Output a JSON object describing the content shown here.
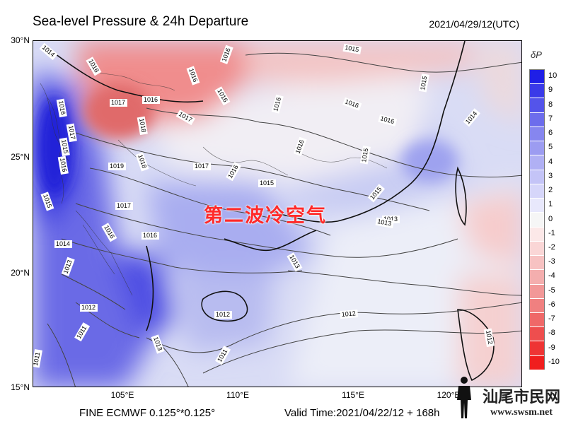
{
  "title": "Sea-level Pressure & 24h Departure",
  "date": "2021/04/29/12(UTC)",
  "y_labels": [
    "30°N",
    "25°N",
    "20°N",
    "15°N"
  ],
  "x_labels": [
    "105°E",
    "110°E",
    "115°E",
    "120°E"
  ],
  "footer_left": "FINE ECMWF 0.125°*0.125°",
  "footer_right": "Valid Time:2021/04/22/12 + 168h",
  "overlay_text": "第二波冷空气",
  "colorbar_title": "δP",
  "colorbar_ticks": [
    "10",
    "9",
    "8",
    "7",
    "6",
    "5",
    "4",
    "3",
    "2",
    "1",
    "0",
    "-1",
    "-2",
    "-3",
    "-4",
    "-5",
    "-6",
    "-7",
    "-8",
    "-9",
    "-10"
  ],
  "colorbar_colors": [
    "#1f1fe6",
    "#3a3ae8",
    "#5454ea",
    "#6d6dec",
    "#8686ef",
    "#9c9cf1",
    "#b0b0f4",
    "#c4c4f7",
    "#d6d6fa",
    "#e8e8fc",
    "#f6f6f6",
    "#fce8e8",
    "#fad6d6",
    "#f7c2c2",
    "#f4aeae",
    "#f29898",
    "#f08080",
    "#ef6868",
    "#ee4e4e",
    "#ee3434",
    "#f01e1e"
  ],
  "contour_labels": [
    {
      "id": "c1",
      "text": "1015"
    },
    {
      "id": "c2",
      "text": "1016"
    },
    {
      "id": "c3",
      "text": "1016"
    },
    {
      "id": "c4",
      "text": "1016"
    },
    {
      "id": "c5",
      "text": "1017"
    },
    {
      "id": "c6",
      "text": "1016"
    },
    {
      "id": "c7",
      "text": "1017"
    },
    {
      "id": "c8",
      "text": "1018"
    },
    {
      "id": "c9",
      "text": "1016"
    },
    {
      "id": "c10",
      "text": "1016"
    },
    {
      "id": "c11",
      "text": "1015"
    },
    {
      "id": "c12",
      "text": "1014"
    },
    {
      "id": "c13",
      "text": "1017"
    },
    {
      "id": "c14",
      "text": "1019"
    },
    {
      "id": "c15",
      "text": "1018"
    },
    {
      "id": "c16",
      "text": "1016"
    },
    {
      "id": "c17",
      "text": "1016"
    },
    {
      "id": "c18",
      "text": "1017"
    },
    {
      "id": "c19",
      "text": "1016"
    },
    {
      "id": "c20",
      "text": "1015"
    },
    {
      "id": "c21",
      "text": "1014"
    },
    {
      "id": "c22",
      "text": "1015"
    },
    {
      "id": "c23",
      "text": "1017"
    },
    {
      "id": "c24",
      "text": "1015"
    },
    {
      "id": "c25",
      "text": "1016"
    },
    {
      "id": "c26",
      "text": "1016"
    },
    {
      "id": "c27",
      "text": "1014"
    },
    {
      "id": "c28",
      "text": "1013"
    },
    {
      "id": "c29",
      "text": "1013"
    },
    {
      "id": "c30",
      "text": "1013"
    },
    {
      "id": "c31",
      "text": "1012"
    },
    {
      "id": "c32",
      "text": "1011"
    },
    {
      "id": "c33",
      "text": "1013"
    },
    {
      "id": "c34",
      "text": "1011"
    },
    {
      "id": "c35",
      "text": "1012"
    },
    {
      "id": "c36",
      "text": "1012"
    },
    {
      "id": "c37",
      "text": "1012"
    },
    {
      "id": "c38",
      "text": "1016"
    },
    {
      "id": "c39",
      "text": "1015"
    },
    {
      "id": "c40",
      "text": "1015"
    },
    {
      "id": "c41",
      "text": "1013"
    },
    {
      "id": "c42",
      "text": "1011"
    },
    {
      "id": "c43",
      "text": "1016"
    },
    {
      "id": "c44",
      "text": "1016"
    }
  ],
  "watermark_text": "汕尾市民网",
  "watermark_url": "www.swsm.net"
}
